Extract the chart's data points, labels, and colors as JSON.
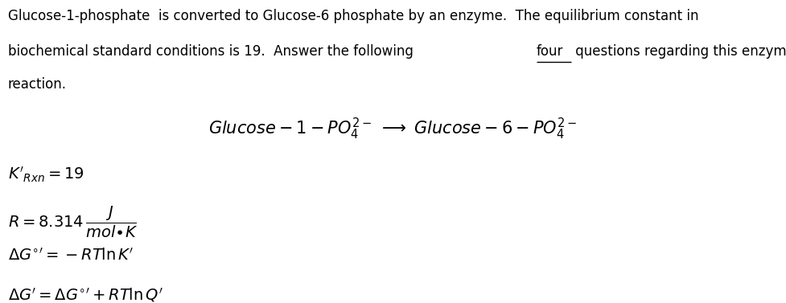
{
  "bg_color": "#ffffff",
  "fig_width": 9.77,
  "fig_height": 3.77,
  "dpi": 100,
  "font_size_para": 12,
  "font_size_reaction": 15,
  "font_size_eq": 14,
  "line1": "Glucose-1-phosphate  is converted to Glucose-6 phosphate by an enzyme.  The equilibrium constant in",
  "line2a": "biochemical standard conditions is 19.  Answer the following ",
  "line2b": "four",
  "line2c": " questions regarding this enzyme-catalyzed",
  "line3": "reaction."
}
